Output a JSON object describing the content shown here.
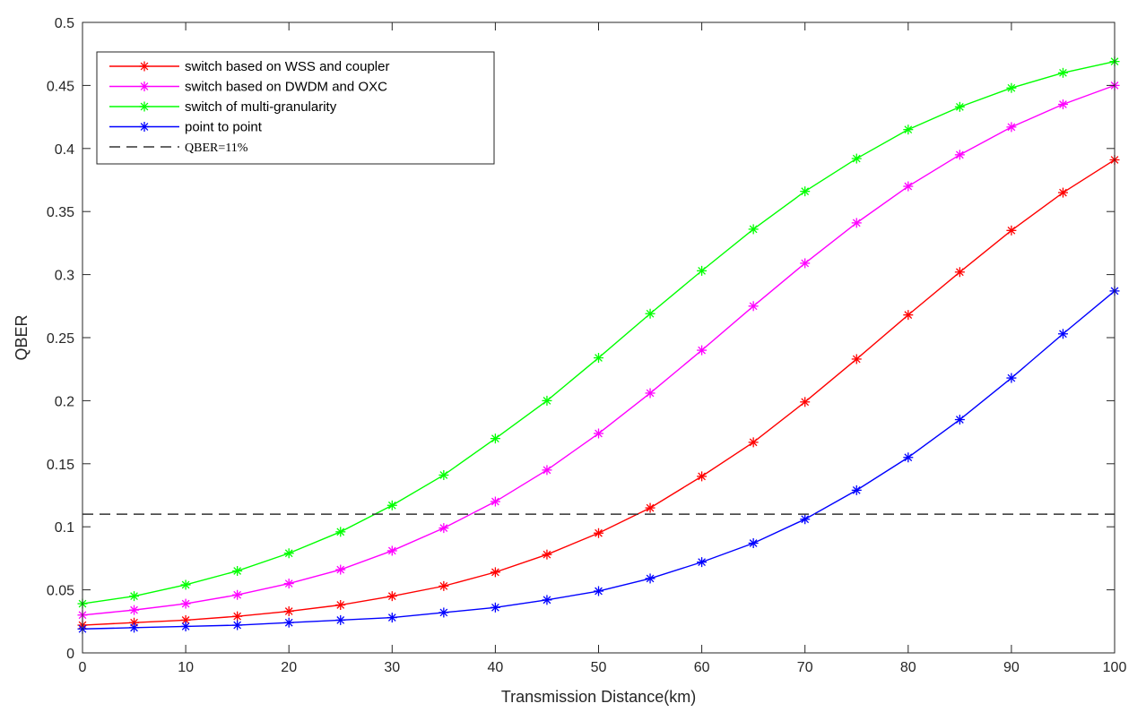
{
  "chart_data": {
    "type": "line",
    "xlabel": "Transmission Distance(km)",
    "ylabel": "QBER",
    "xlim": [
      0,
      100
    ],
    "ylim": [
      0,
      0.5
    ],
    "grid": false,
    "legend_position": "top-left",
    "x": [
      0,
      5,
      10,
      15,
      20,
      25,
      30,
      35,
      40,
      45,
      50,
      55,
      60,
      65,
      70,
      75,
      80,
      85,
      90,
      95,
      100
    ],
    "x_ticks": [
      0,
      10,
      20,
      30,
      40,
      50,
      60,
      70,
      80,
      90,
      100
    ],
    "x_tick_labels": [
      "0",
      "10",
      "20",
      "30",
      "40",
      "50",
      "60",
      "70",
      "80",
      "90",
      "100"
    ],
    "y_ticks": [
      0,
      0.05,
      0.1,
      0.15,
      0.2,
      0.25,
      0.3,
      0.35,
      0.4,
      0.45,
      0.5
    ],
    "y_tick_labels": [
      "0",
      "0.05",
      "0.1",
      "0.15",
      "0.2",
      "0.25",
      "0.3",
      "0.35",
      "0.4",
      "0.45",
      "0.5"
    ],
    "series": [
      {
        "name": "switch based on WSS and coupler",
        "color": "#ff0000",
        "marker": "asterisk",
        "values": [
          0.022,
          0.024,
          0.026,
          0.029,
          0.033,
          0.038,
          0.045,
          0.053,
          0.064,
          0.078,
          0.095,
          0.115,
          0.14,
          0.167,
          0.199,
          0.233,
          0.268,
          0.302,
          0.335,
          0.365,
          0.391
        ]
      },
      {
        "name": "switch based on DWDM and OXC",
        "color": "#ff00ff",
        "marker": "asterisk",
        "values": [
          0.03,
          0.034,
          0.039,
          0.046,
          0.055,
          0.066,
          0.081,
          0.099,
          0.12,
          0.145,
          0.174,
          0.206,
          0.24,
          0.275,
          0.309,
          0.341,
          0.37,
          0.395,
          0.417,
          0.435,
          0.45
        ]
      },
      {
        "name": "switch of multi-granularity",
        "color": "#00ff00",
        "marker": "asterisk",
        "values": [
          0.039,
          0.045,
          0.054,
          0.065,
          0.079,
          0.096,
          0.117,
          0.141,
          0.17,
          0.2,
          0.234,
          0.269,
          0.303,
          0.336,
          0.366,
          0.392,
          0.415,
          0.433,
          0.448,
          0.46,
          0.469
        ]
      },
      {
        "name": "point to point",
        "color": "#0000ff",
        "marker": "asterisk",
        "values": [
          0.019,
          0.02,
          0.021,
          0.022,
          0.024,
          0.026,
          0.028,
          0.032,
          0.036,
          0.042,
          0.049,
          0.059,
          0.072,
          0.087,
          0.106,
          0.129,
          0.155,
          0.185,
          0.218,
          0.253,
          0.287
        ]
      }
    ],
    "reference_lines": [
      {
        "name": "QBER=11%",
        "y": 0.11,
        "color": "#333333",
        "style": "dashed"
      }
    ]
  }
}
